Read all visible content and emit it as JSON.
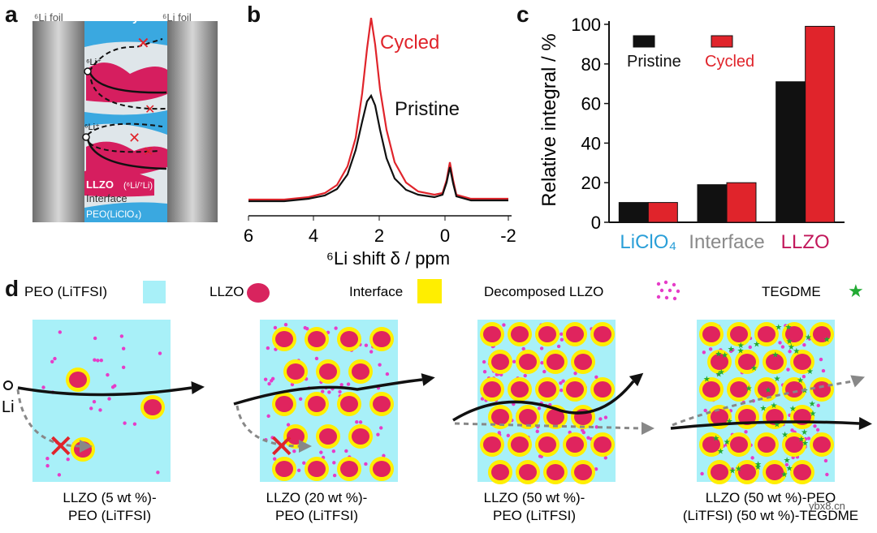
{
  "panel_a": {
    "label": "a",
    "foil_left": "⁶Li foil",
    "electrolyte": "Electrolyte",
    "foil_right": "⁶Li foil",
    "ion_top": "⁶Li⁺",
    "ion_bottom": "⁶Li⁺",
    "llzo": "LLZO",
    "llzo_note": "(⁶Li/⁷Li)",
    "interface": "Interface",
    "peo": "PEO(LiClO₄)"
  },
  "panel_b": {
    "label": "b",
    "cycled": "Cycled",
    "pristine": "Pristine",
    "xlabel": "⁶Li shift δ / ppm",
    "ticks": [
      "6",
      "4",
      "2",
      "0",
      "-2"
    ]
  },
  "chart_data": {
    "type": "bar",
    "title": "",
    "categories": [
      "LiClO₄",
      "Interface",
      "LLZO"
    ],
    "series": [
      {
        "name": "Pristine",
        "color": "#111111",
        "values": [
          10,
          19,
          71
        ]
      },
      {
        "name": "Cycled",
        "color": "#e0242b",
        "values": [
          10,
          20,
          99
        ]
      }
    ],
    "ylabel": "Relative integral / %",
    "ylim": [
      0,
      100
    ],
    "yticks": [
      "0",
      "20",
      "40",
      "60",
      "80",
      "100"
    ],
    "category_colors": [
      "#2a9fd8",
      "#8a8a8a",
      "#c2185b"
    ],
    "label": "c"
  },
  "panel_d": {
    "label": "d",
    "legend": {
      "peo": "PEO (LiTFSI)",
      "llzo": "LLZO",
      "interface": "Interface",
      "decomposed": "Decomposed LLZO",
      "tegdme": "TEGDME"
    },
    "li_label": "Li",
    "captions": [
      {
        "line1": "LLZO (5 wt %)-",
        "line2": "PEO (LiTFSI)"
      },
      {
        "line1": "LLZO (20 wt %)-",
        "line2": "PEO (LiTFSI)"
      },
      {
        "line1": "LLZO (50 wt %)-",
        "line2": "PEO (LiTFSI)"
      },
      {
        "line1": "LLZO (50 wt %)-PEO",
        "line2": "(LiTFSI) (50 wt %)-TEGDME"
      }
    ],
    "colors": {
      "peo": "#a8f0f8",
      "llzo": "#e0245e",
      "interface": "#ffee00",
      "decomposed": "#e63cc8",
      "tegdme": "#22aa33"
    }
  },
  "watermark": "ybx8.cn"
}
